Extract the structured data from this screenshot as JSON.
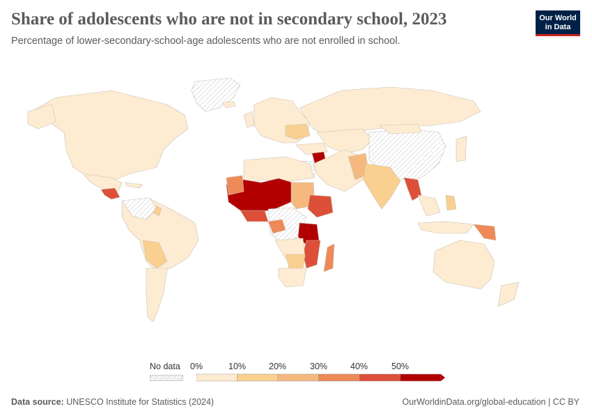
{
  "title": "Share of adolescents who are not in secondary school, 2023",
  "subtitle": "Percentage of lower-secondary-school-age adolescents who are not enrolled in school.",
  "logo": {
    "line1": "Our World",
    "line2": "in Data"
  },
  "legend": {
    "no_data_label": "No data",
    "ticks": [
      "0%",
      "10%",
      "20%",
      "30%",
      "40%",
      "50%"
    ],
    "bins": [
      {
        "min": 0,
        "max": 10,
        "color": "#fdecd2"
      },
      {
        "min": 10,
        "max": 20,
        "color": "#f9d090"
      },
      {
        "min": 20,
        "max": 30,
        "color": "#f5b97f"
      },
      {
        "min": 30,
        "max": 40,
        "color": "#ee8a58"
      },
      {
        "min": 40,
        "max": 50,
        "color": "#dd4f38"
      },
      {
        "min": 50,
        "max": 60,
        "color": "#b20000"
      }
    ]
  },
  "footer": {
    "source_label": "Data source:",
    "source_text": "UNESCO Institute for Statistics (2024)",
    "right_text": "OurWorldinData.org/global-education | CC BY"
  },
  "colors": {
    "no_data": "#e0e0e0",
    "border": "#bdbdbd",
    "title": "#5b5b5b",
    "logo_bg": "#002147",
    "logo_accent": "#ce261e"
  }
}
